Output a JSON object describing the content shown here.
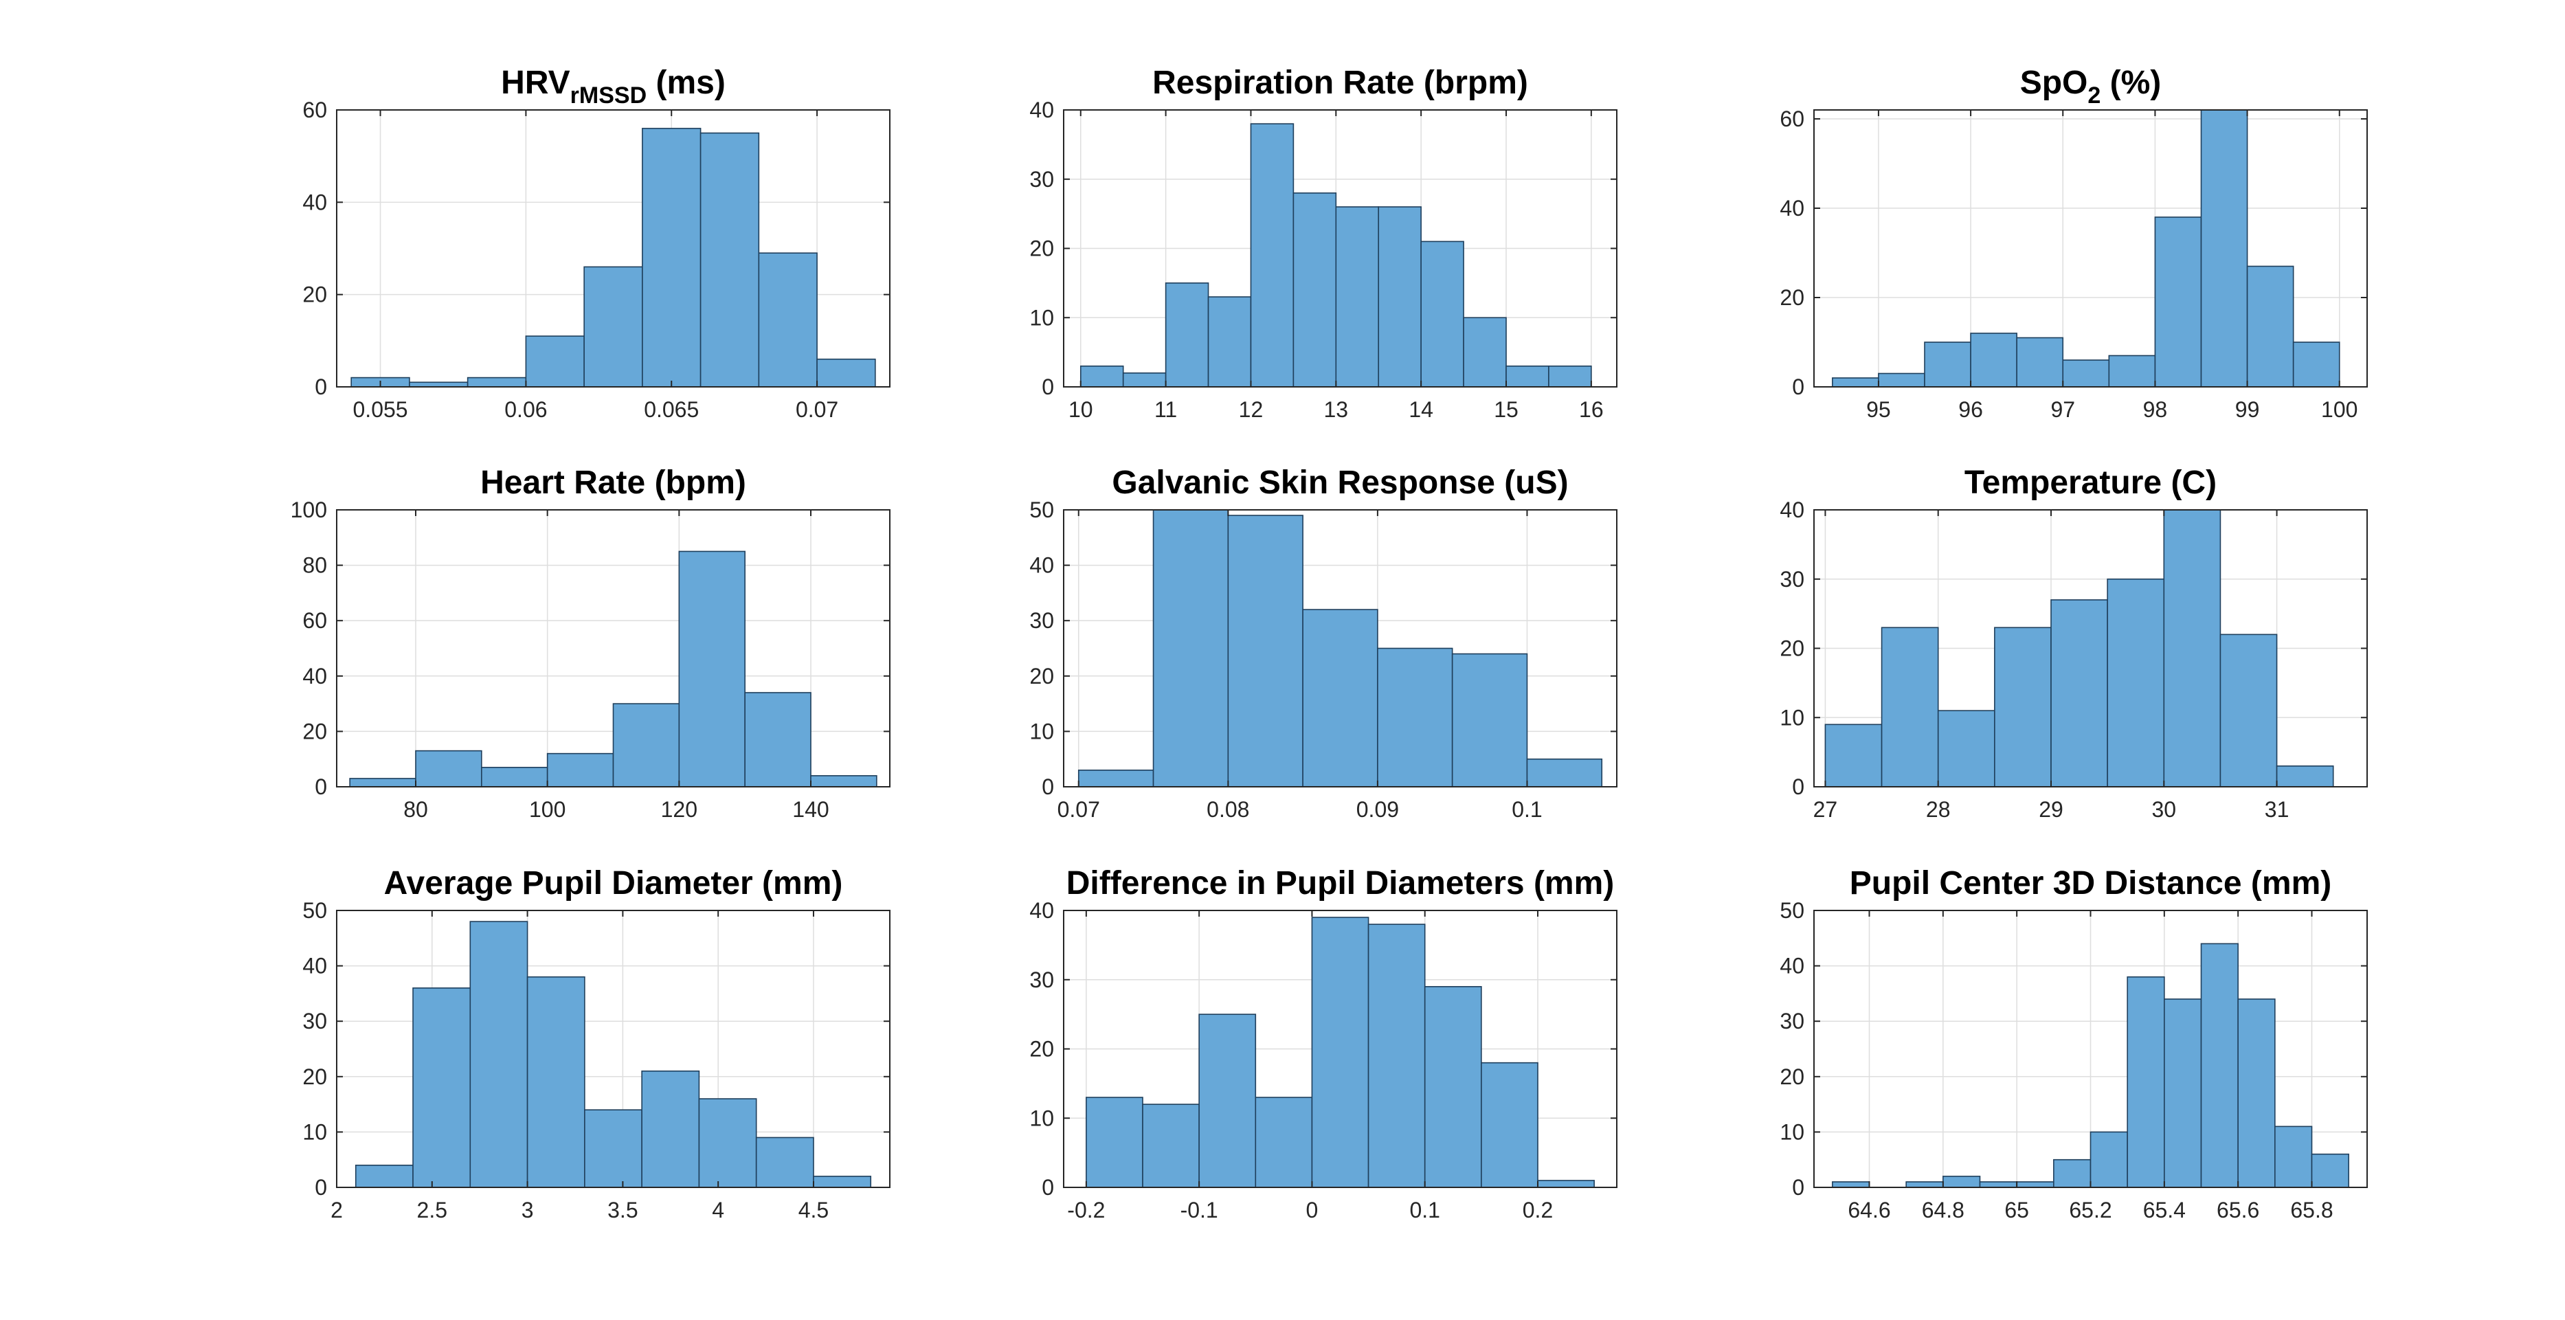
{
  "chart_data": [
    {
      "type": "bar",
      "title": "HRV",
      "title_sub": "rMSSD",
      "title_suffix": " (ms)",
      "bin_edges": [
        0.054,
        0.056,
        0.058,
        0.06,
        0.062,
        0.064,
        0.066,
        0.068,
        0.07,
        0.072
      ],
      "values": [
        2,
        1,
        2,
        11,
        26,
        56,
        55,
        29,
        6
      ],
      "xlim": [
        0.0535,
        0.0725
      ],
      "ylim": [
        0,
        60
      ],
      "xticks": [
        0.055,
        0.06,
        0.065,
        0.07
      ],
      "xticklabels": [
        "0.055",
        "0.06",
        "0.065",
        "0.07"
      ],
      "yticks": [
        0,
        20,
        40,
        60
      ],
      "yticklabels": [
        "0",
        "20",
        "40",
        "60"
      ],
      "grid": true
    },
    {
      "type": "bar",
      "title": "Respiration Rate (brpm)",
      "bin_edges": [
        10,
        10.5,
        11,
        11.5,
        12,
        12.5,
        13,
        13.5,
        14,
        14.5,
        15,
        15.5,
        16
      ],
      "values": [
        3,
        2,
        15,
        13,
        38,
        28,
        26,
        26,
        21,
        10,
        3,
        3
      ],
      "xlim": [
        9.8,
        16.3
      ],
      "ylim": [
        0,
        40
      ],
      "xticks": [
        10,
        11,
        12,
        13,
        14,
        15,
        16
      ],
      "xticklabels": [
        "10",
        "11",
        "12",
        "13",
        "14",
        "15",
        "16"
      ],
      "yticks": [
        0,
        10,
        20,
        30,
        40
      ],
      "yticklabels": [
        "0",
        "10",
        "20",
        "30",
        "40"
      ],
      "grid": true
    },
    {
      "type": "bar",
      "title": "SpO",
      "title_sub": "2",
      "title_suffix": " (%)",
      "bin_edges": [
        94.5,
        95,
        95.5,
        96,
        96.5,
        97,
        97.5,
        98,
        98.5,
        99,
        99.5,
        100
      ],
      "values": [
        2,
        3,
        10,
        12,
        11,
        6,
        7,
        38,
        62,
        27,
        10
      ],
      "xlim": [
        94.3,
        100.3
      ],
      "ylim": [
        0,
        62
      ],
      "xticks": [
        95,
        96,
        97,
        98,
        99,
        100
      ],
      "xticklabels": [
        "95",
        "96",
        "97",
        "98",
        "99",
        "100"
      ],
      "yticks": [
        0,
        20,
        40,
        60
      ],
      "yticklabels": [
        "0",
        "20",
        "40",
        "60"
      ],
      "grid": true
    },
    {
      "type": "bar",
      "title": "Heart Rate (bpm)",
      "bin_edges": [
        70,
        80,
        90,
        100,
        110,
        120,
        130,
        140,
        150
      ],
      "values": [
        3,
        13,
        7,
        12,
        30,
        85,
        34,
        4
      ],
      "xlim": [
        68,
        152
      ],
      "ylim": [
        0,
        100
      ],
      "xticks": [
        80,
        100,
        120,
        140
      ],
      "xticklabels": [
        "80",
        "100",
        "120",
        "140"
      ],
      "yticks": [
        0,
        20,
        40,
        60,
        80,
        100
      ],
      "yticklabels": [
        "0",
        "20",
        "40",
        "60",
        "80",
        "100"
      ],
      "grid": true
    },
    {
      "type": "bar",
      "title": "Galvanic Skin Response (uS)",
      "bin_edges": [
        0.07,
        0.075,
        0.08,
        0.085,
        0.09,
        0.095,
        0.1,
        0.105
      ],
      "values": [
        3,
        50,
        49,
        32,
        25,
        24,
        5
      ],
      "xlim": [
        0.069,
        0.106
      ],
      "ylim": [
        0,
        50
      ],
      "xticks": [
        0.07,
        0.08,
        0.09,
        0.1
      ],
      "xticklabels": [
        "0.07",
        "0.08",
        "0.09",
        "0.1"
      ],
      "yticks": [
        0,
        10,
        20,
        30,
        40,
        50
      ],
      "yticklabels": [
        "0",
        "10",
        "20",
        "30",
        "40",
        "50"
      ],
      "grid": true
    },
    {
      "type": "bar",
      "title": "Temperature (C)",
      "bin_edges": [
        27,
        27.5,
        28,
        28.5,
        29,
        29.5,
        30,
        30.5,
        31,
        31.5
      ],
      "values": [
        9,
        23,
        11,
        23,
        27,
        30,
        40,
        22,
        3
      ],
      "xlim": [
        26.9,
        31.8
      ],
      "ylim": [
        0,
        40
      ],
      "xticks": [
        27,
        28,
        29,
        30,
        31
      ],
      "xticklabels": [
        "27",
        "28",
        "29",
        "30",
        "31"
      ],
      "yticks": [
        0,
        10,
        20,
        30,
        40
      ],
      "yticklabels": [
        "0",
        "10",
        "20",
        "30",
        "40"
      ],
      "grid": true
    },
    {
      "type": "bar",
      "title": "Average Pupil Diameter (mm)",
      "bin_edges": [
        2.1,
        2.4,
        2.7,
        3.0,
        3.3,
        3.6,
        3.9,
        4.2,
        4.5,
        4.8
      ],
      "values": [
        4,
        36,
        48,
        38,
        14,
        21,
        16,
        9,
        2
      ],
      "xlim": [
        2.0,
        4.9
      ],
      "ylim": [
        0,
        50
      ],
      "xticks": [
        2,
        2.5,
        3,
        3.5,
        4,
        4.5
      ],
      "xticklabels": [
        "2",
        "2.5",
        "3",
        "3.5",
        "4",
        "4.5"
      ],
      "yticks": [
        0,
        10,
        20,
        30,
        40,
        50
      ],
      "yticklabels": [
        "0",
        "10",
        "20",
        "30",
        "40",
        "50"
      ],
      "grid": true
    },
    {
      "type": "bar",
      "title": "Difference in Pupil Diameters (mm)",
      "bin_edges": [
        -0.2,
        -0.15,
        -0.1,
        -0.05,
        0,
        0.05,
        0.1,
        0.15,
        0.2,
        0.25
      ],
      "values": [
        13,
        12,
        25,
        13,
        39,
        38,
        29,
        18,
        1
      ],
      "xlim": [
        -0.22,
        0.27
      ],
      "ylim": [
        0,
        40
      ],
      "xticks": [
        -0.2,
        -0.1,
        0,
        0.1,
        0.2
      ],
      "xticklabels": [
        "-0.2",
        "-0.1",
        "0",
        "0.1",
        "0.2"
      ],
      "yticks": [
        0,
        10,
        20,
        30,
        40
      ],
      "yticklabels": [
        "0",
        "10",
        "20",
        "30",
        "40"
      ],
      "grid": true
    },
    {
      "type": "bar",
      "title": "Pupil Center 3D Distance (mm)",
      "bin_edges": [
        64.5,
        64.6,
        64.7,
        64.8,
        64.9,
        65.0,
        65.1,
        65.2,
        65.3,
        65.4,
        65.5,
        65.6,
        65.7,
        65.8,
        65.9
      ],
      "values": [
        1,
        0,
        1,
        2,
        1,
        1,
        5,
        10,
        38,
        34,
        44,
        34,
        11,
        6
      ],
      "xlim": [
        64.45,
        65.95
      ],
      "ylim": [
        0,
        50
      ],
      "xticks": [
        64.6,
        64.8,
        65,
        65.2,
        65.4,
        65.6,
        65.8
      ],
      "xticklabels": [
        "64.6",
        "64.8",
        "65",
        "65.2",
        "65.4",
        "65.6",
        "65.8"
      ],
      "yticks": [
        0,
        10,
        20,
        30,
        40,
        50
      ],
      "yticklabels": [
        "0",
        "10",
        "20",
        "30",
        "40",
        "50"
      ],
      "grid": true
    }
  ],
  "colors": {
    "bar_fill": "#67a8d8",
    "bar_edge": "#1f3f5c",
    "axis": "#262626",
    "grid": "#dedede"
  }
}
